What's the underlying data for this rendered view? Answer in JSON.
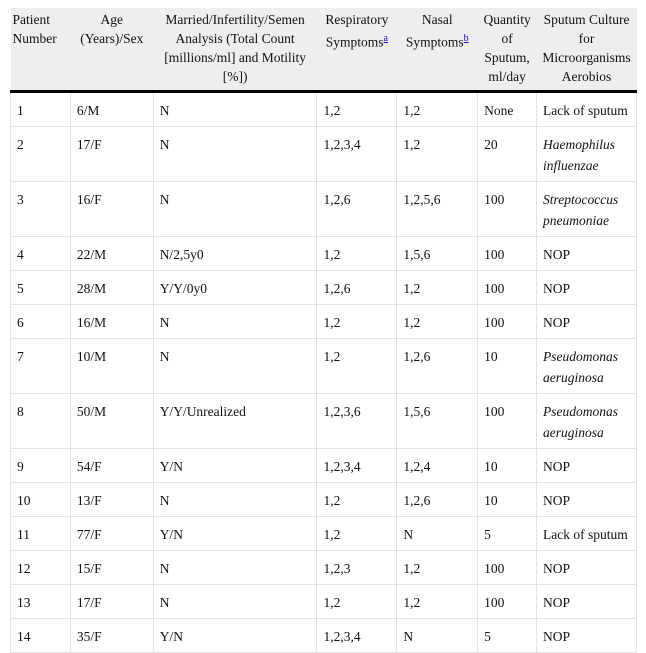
{
  "table": {
    "headers": [
      {
        "label": "Patient Number"
      },
      {
        "label": "Age (Years)/Sex"
      },
      {
        "label": "Married/Infertility/Semen Analysis (Total Count [millions/ml] and Motility [%])"
      },
      {
        "label": "Respiratory Symptoms",
        "footnote": "a"
      },
      {
        "label": "Nasal Symptoms",
        "footnote": "b"
      },
      {
        "label": "Quantity of Sputum, ml/day"
      },
      {
        "label": "Sputum Culture for Microorganisms Aerobios"
      }
    ],
    "rows": [
      {
        "c": [
          "1",
          "6/M",
          "N",
          "1,2",
          "1,2",
          "None",
          "Lack of sputum"
        ],
        "italic": false
      },
      {
        "c": [
          "2",
          "17/F",
          "N",
          "1,2,3,4",
          "1,2",
          "20",
          "Haemophilus influenzae"
        ],
        "italic": true
      },
      {
        "c": [
          "3",
          "16/F",
          "N",
          "1,2,6",
          "1,2,5,6",
          "100",
          "Streptococcus pneumoniae"
        ],
        "italic": true
      },
      {
        "c": [
          "4",
          "22/M",
          "N/2,5y0",
          "1,2",
          "1,5,6",
          "100",
          "NOP"
        ],
        "italic": false
      },
      {
        "c": [
          "5",
          "28/M",
          "Y/Y/0y0",
          "1,2,6",
          "1,2",
          "100",
          "NOP"
        ],
        "italic": false
      },
      {
        "c": [
          "6",
          "16/M",
          "N",
          "1,2",
          "1,2",
          "100",
          "NOP"
        ],
        "italic": false
      },
      {
        "c": [
          "7",
          "10/M",
          "N",
          "1,2",
          "1,2,6",
          "10",
          "Pseudomonas aeruginosa"
        ],
        "italic": true
      },
      {
        "c": [
          "8",
          "50/M",
          "Y/Y/Unrealized",
          "1,2,3,6",
          "1,5,6",
          "100",
          "Pseudomonas aeruginosa"
        ],
        "italic": true
      },
      {
        "c": [
          "9",
          "54/F",
          "Y/N",
          "1,2,3,4",
          "1,2,4",
          "10",
          "NOP"
        ],
        "italic": false
      },
      {
        "c": [
          "10",
          "13/F",
          "N",
          "1,2",
          "1,2,6",
          "10",
          "NOP"
        ],
        "italic": false
      },
      {
        "c": [
          "11",
          "77/F",
          "Y/N",
          "1,2",
          "N",
          "5",
          "Lack of sputum"
        ],
        "italic": false
      },
      {
        "c": [
          "12",
          "15/F",
          "N",
          "1,2,3",
          "1,2",
          "100",
          "NOP"
        ],
        "italic": false
      },
      {
        "c": [
          "13",
          "17/F",
          "N",
          "1,2",
          "1,2",
          "100",
          "NOP"
        ],
        "italic": false
      },
      {
        "c": [
          "14",
          "35/F",
          "Y/N",
          "1,2,3,4",
          "N",
          "5",
          "NOP"
        ],
        "italic": false
      }
    ]
  }
}
